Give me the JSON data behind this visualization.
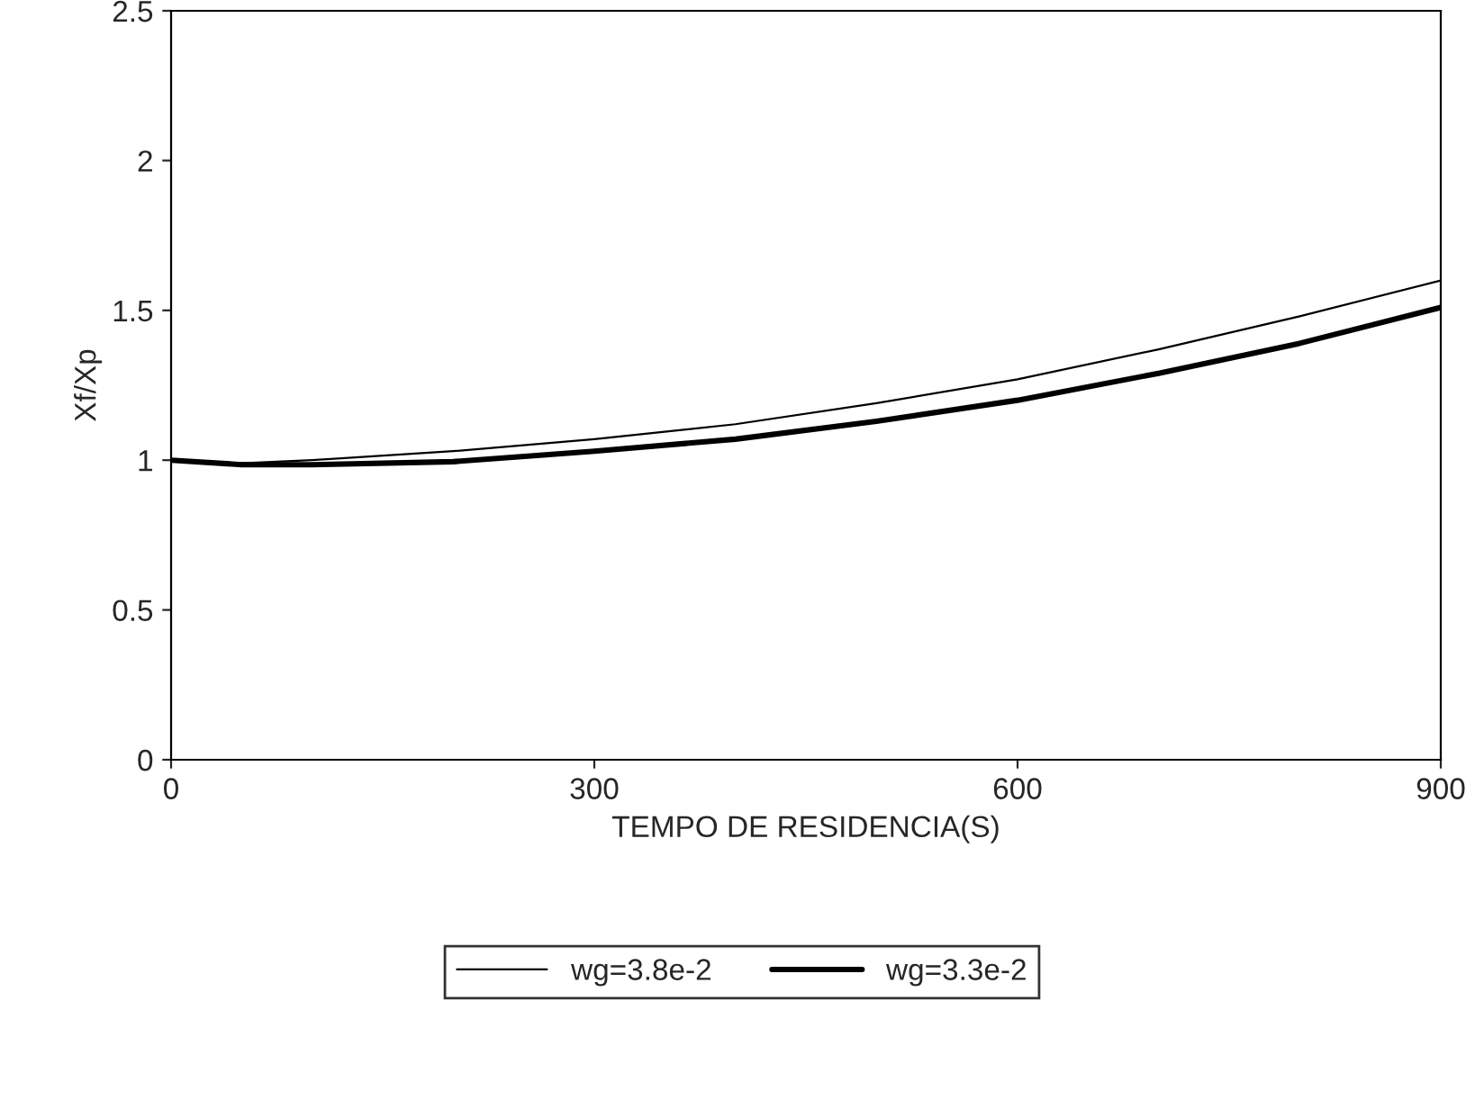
{
  "chart_data": {
    "type": "line",
    "xlabel": "TEMPO DE RESIDENCIA(S)",
    "ylabel": "Xf/Xp",
    "x": [
      0,
      50,
      100,
      200,
      300,
      400,
      500,
      600,
      700,
      800,
      900
    ],
    "series": [
      {
        "name": "wg=3.8e-2",
        "color": "#000000",
        "values": [
          1.0,
          0.99,
          1.0,
          1.03,
          1.07,
          1.12,
          1.19,
          1.27,
          1.37,
          1.48,
          1.6
        ]
      },
      {
        "name": "wg=3.3e-2",
        "color": "#000000",
        "values": [
          1.0,
          0.985,
          0.985,
          0.995,
          1.03,
          1.07,
          1.13,
          1.2,
          1.29,
          1.39,
          1.51
        ]
      }
    ],
    "xlim": [
      0,
      900
    ],
    "ylim": [
      0,
      2.5
    ],
    "xticks": [
      0,
      300,
      600,
      900
    ],
    "yticks": [
      0,
      0.5,
      1,
      1.5,
      2,
      2.5
    ],
    "grid": false,
    "legend": "bottom",
    "marker": "none",
    "line_style": "solid"
  }
}
